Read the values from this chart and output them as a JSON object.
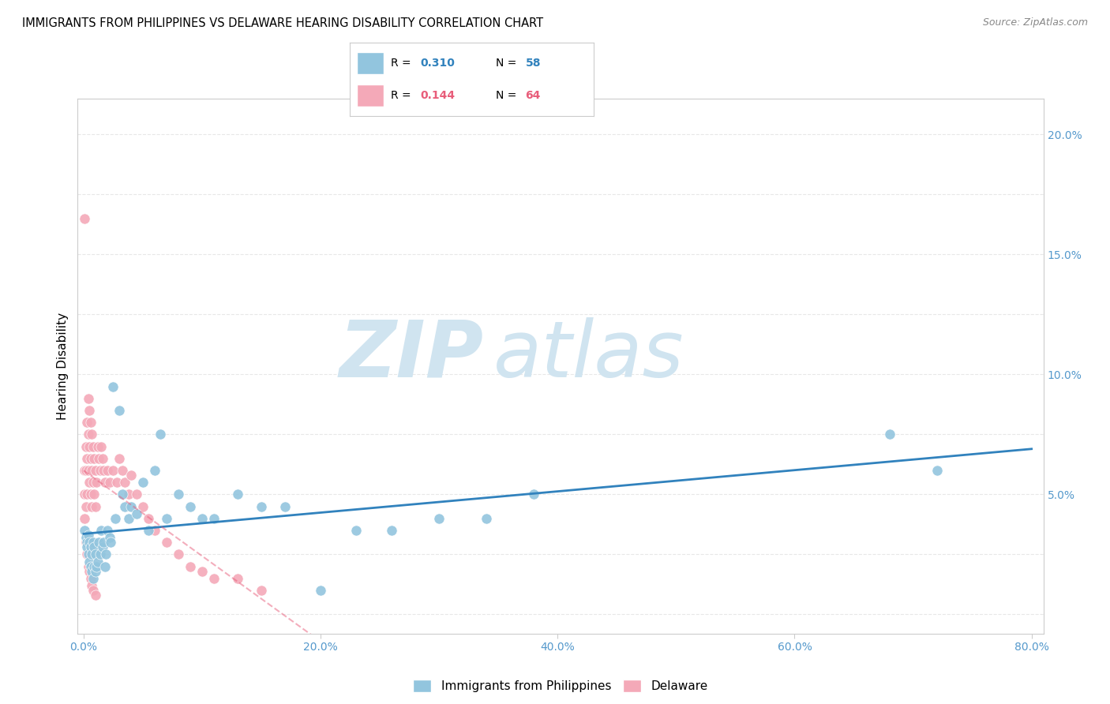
{
  "title": "IMMIGRANTS FROM PHILIPPINES VS DELAWARE HEARING DISABILITY CORRELATION CHART",
  "source": "Source: ZipAtlas.com",
  "ylabel": "Hearing Disability",
  "xlabel_ticks": [
    "0.0%",
    "20.0%",
    "40.0%",
    "60.0%",
    "80.0%"
  ],
  "xlabel_vals": [
    0.0,
    0.2,
    0.4,
    0.6,
    0.8
  ],
  "ylabel_ticks_right": [
    "5.0%",
    "10.0%",
    "15.0%",
    "20.0%"
  ],
  "ylabel_vals_right": [
    0.05,
    0.1,
    0.15,
    0.2
  ],
  "xlim": [
    -0.005,
    0.81
  ],
  "ylim": [
    -0.008,
    0.215
  ],
  "blue_R": 0.31,
  "blue_N": 58,
  "pink_R": 0.144,
  "pink_N": 64,
  "blue_color": "#92c5de",
  "pink_color": "#f4a9b8",
  "blue_line_color": "#3182bd",
  "pink_line_color": "#e85d7a",
  "watermark_zip": "ZIP",
  "watermark_atlas": "atlas",
  "watermark_color": "#d0e4f0",
  "background_color": "#ffffff",
  "grid_color": "#e8e8e8",
  "blue_scatter_x": [
    0.001,
    0.002,
    0.003,
    0.003,
    0.004,
    0.004,
    0.005,
    0.005,
    0.006,
    0.006,
    0.007,
    0.007,
    0.008,
    0.008,
    0.009,
    0.009,
    0.01,
    0.01,
    0.011,
    0.012,
    0.013,
    0.014,
    0.015,
    0.016,
    0.017,
    0.018,
    0.019,
    0.02,
    0.022,
    0.023,
    0.025,
    0.027,
    0.03,
    0.033,
    0.035,
    0.038,
    0.04,
    0.045,
    0.05,
    0.055,
    0.06,
    0.065,
    0.07,
    0.08,
    0.09,
    0.1,
    0.11,
    0.13,
    0.15,
    0.17,
    0.2,
    0.23,
    0.26,
    0.3,
    0.34,
    0.38,
    0.68,
    0.72
  ],
  "blue_scatter_y": [
    0.035,
    0.032,
    0.03,
    0.028,
    0.033,
    0.025,
    0.03,
    0.022,
    0.028,
    0.02,
    0.025,
    0.018,
    0.03,
    0.015,
    0.028,
    0.02,
    0.025,
    0.018,
    0.02,
    0.022,
    0.03,
    0.025,
    0.035,
    0.028,
    0.03,
    0.02,
    0.025,
    0.035,
    0.032,
    0.03,
    0.095,
    0.04,
    0.085,
    0.05,
    0.045,
    0.04,
    0.045,
    0.042,
    0.055,
    0.035,
    0.06,
    0.075,
    0.04,
    0.05,
    0.045,
    0.04,
    0.04,
    0.05,
    0.045,
    0.045,
    0.01,
    0.035,
    0.035,
    0.04,
    0.04,
    0.05,
    0.075,
    0.06
  ],
  "pink_scatter_x": [
    0.001,
    0.001,
    0.001,
    0.002,
    0.002,
    0.002,
    0.003,
    0.003,
    0.003,
    0.004,
    0.004,
    0.004,
    0.005,
    0.005,
    0.005,
    0.006,
    0.006,
    0.006,
    0.007,
    0.007,
    0.007,
    0.008,
    0.008,
    0.009,
    0.009,
    0.01,
    0.01,
    0.011,
    0.012,
    0.013,
    0.014,
    0.015,
    0.016,
    0.017,
    0.018,
    0.02,
    0.022,
    0.025,
    0.028,
    0.03,
    0.033,
    0.035,
    0.038,
    0.04,
    0.045,
    0.05,
    0.055,
    0.06,
    0.07,
    0.08,
    0.09,
    0.1,
    0.11,
    0.13,
    0.15,
    0.001,
    0.002,
    0.003,
    0.004,
    0.005,
    0.006,
    0.007,
    0.008,
    0.01
  ],
  "pink_scatter_y": [
    0.06,
    0.05,
    0.04,
    0.07,
    0.06,
    0.045,
    0.08,
    0.065,
    0.05,
    0.09,
    0.075,
    0.06,
    0.085,
    0.07,
    0.055,
    0.08,
    0.065,
    0.05,
    0.075,
    0.06,
    0.045,
    0.07,
    0.055,
    0.065,
    0.05,
    0.06,
    0.045,
    0.055,
    0.07,
    0.065,
    0.06,
    0.07,
    0.065,
    0.06,
    0.055,
    0.06,
    0.055,
    0.06,
    0.055,
    0.065,
    0.06,
    0.055,
    0.05,
    0.058,
    0.05,
    0.045,
    0.04,
    0.035,
    0.03,
    0.025,
    0.02,
    0.018,
    0.015,
    0.015,
    0.01,
    0.165,
    0.03,
    0.025,
    0.02,
    0.018,
    0.015,
    0.012,
    0.01,
    0.008
  ]
}
